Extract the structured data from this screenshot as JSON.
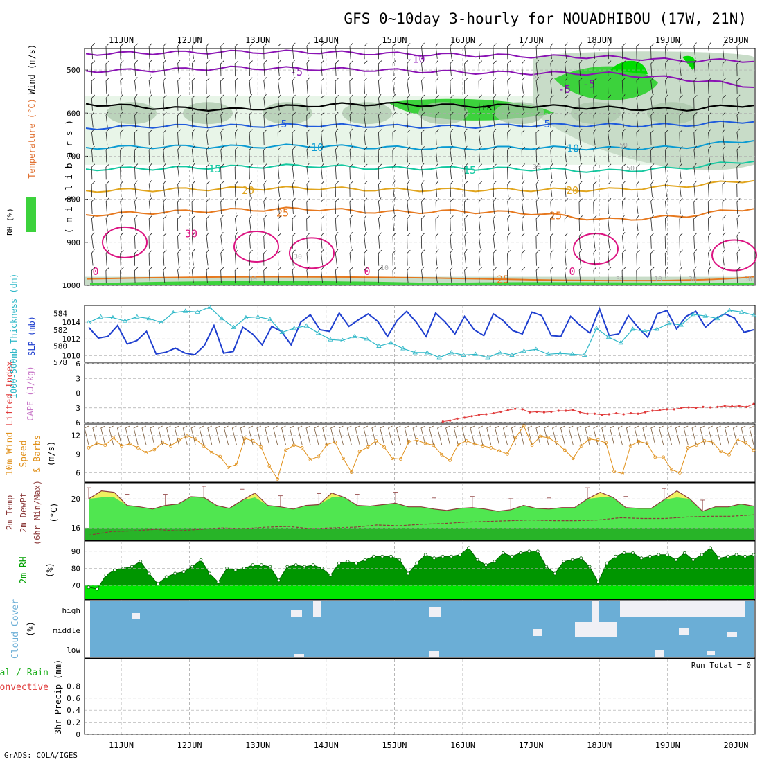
{
  "title": "GFS 0~10day 3-hourly for NOUADHIBOU (17W, 21N)",
  "credit": "GrADS: COLA/IGES",
  "dates": [
    "11JUN",
    "12JUN",
    "13JUN",
    "14JUN",
    "15JUN",
    "16JUN",
    "17JUN",
    "18JUN",
    "19JUN",
    "20JUN"
  ],
  "colors": {
    "sounding_rh": [
      "#e8f5e8",
      "#c8dcc8",
      "#a8c4a8",
      "#3cd23c",
      "#00dc00"
    ],
    "temp_isotherms": {
      "-10": "#8a12b4",
      "-5": "#8a12b4",
      "FR": "#000000",
      "5": "#1e5adc",
      "10": "#0a9bd2",
      "15": "#14c8a0",
      "20": "#e1a51e",
      "25": "#e6781e",
      "30": "#dc1482"
    },
    "slp": "#1f3fcf",
    "thickness": "#2fb8c8",
    "lifted_index": "#e03a3a",
    "wind10m": "#e0901a",
    "temp2m_fill": "#50e650",
    "temp2m_max": "#f0f060",
    "dewpt_fill": "#28b428",
    "rh2m_fill": "#009600",
    "rh2m_low": "#00e600",
    "cloud_fill": "#6baed6",
    "cloud_clear": "#f0f0f5"
  },
  "chart_data": [
    {
      "type": "area",
      "title": "",
      "ylabel_left": [
        "RH (%)",
        "Temperature (°C)",
        "Wind (m/s)"
      ],
      "ylabel_right": "( m i l l i b a r s )",
      "yticks": [
        "500",
        "600",
        "700",
        "800",
        "900",
        "1000"
      ],
      "ylim": [
        1000,
        450
      ],
      "x": [
        "11JUN",
        "12JUN",
        "13JUN",
        "14JUN",
        "15JUN",
        "16JUN",
        "17JUN",
        "18JUN",
        "19JUN",
        "20JUN"
      ],
      "isotherm_labels": [
        "-10",
        "-5",
        "-5",
        "FR",
        "-5",
        "5",
        "5",
        "10",
        "10",
        "15",
        "15",
        "20",
        "20",
        "25",
        "25",
        "30",
        "0",
        "0",
        "0",
        "25"
      ],
      "rh_labels": [
        "50",
        "30",
        "10",
        "50",
        "50",
        "30",
        "50",
        "30",
        "50",
        "10",
        "30"
      ],
      "isotherms": [
        {
          "name": "-10",
          "values": [
            462,
            460,
            458,
            458,
            462,
            465,
            468,
            470,
            478,
            478
          ]
        },
        {
          "name": "-5",
          "values": [
            502,
            500,
            495,
            497,
            500,
            505,
            507,
            508,
            520,
            538
          ]
        },
        {
          "name": "FR",
          "values": [
            578,
            588,
            592,
            582,
            578,
            583,
            583,
            588,
            592,
            580
          ]
        },
        {
          "name": "5",
          "values": [
            635,
            630,
            630,
            628,
            630,
            632,
            628,
            628,
            628,
            618
          ]
        },
        {
          "name": "10",
          "values": [
            680,
            678,
            678,
            676,
            680,
            682,
            680,
            682,
            680,
            662
          ]
        },
        {
          "name": "15",
          "values": [
            730,
            728,
            725,
            722,
            728,
            728,
            730,
            735,
            728,
            710
          ]
        },
        {
          "name": "20",
          "values": [
            780,
            778,
            775,
            774,
            778,
            778,
            778,
            778,
            770,
            755
          ]
        },
        {
          "name": "25",
          "values": [
            836,
            830,
            825,
            822,
            830,
            828,
            832,
            848,
            840,
            820
          ]
        }
      ]
    },
    {
      "type": "line",
      "ylabel_left": "1000-500mb Thickness (dm)",
      "ylabel_right": "SLP (mb)",
      "yticks_left": [
        "578",
        "580",
        "582",
        "584"
      ],
      "yticks_right": [
        "1010",
        "1012",
        "1014"
      ],
      "ylim_left": [
        578,
        585
      ],
      "ylim_right": [
        1009.2,
        1016
      ],
      "series": [
        {
          "name": "SLP",
          "axis": "right",
          "values": [
            1013.4,
            1012.1,
            1012.3,
            1013.6,
            1011.4,
            1011.8,
            1012.9,
            1010.2,
            1010.4,
            1010.9,
            1010.3,
            1010.1,
            1011.2,
            1013.6,
            1010.3,
            1010.5,
            1013.4,
            1012.6,
            1011.3,
            1013.5,
            1012.9,
            1011.3,
            1014.0,
            1014.9,
            1013.1,
            1012.9,
            1015.1,
            1013.5,
            1014.3,
            1015.0,
            1014.1,
            1012.3,
            1014.2,
            1015.3,
            1014.0,
            1012.3,
            1015.1,
            1014.0,
            1012.6,
            1014.7,
            1013.1,
            1012.4,
            1015.0,
            1014.2,
            1013.0,
            1012.6,
            1015.2,
            1014.8,
            1012.4,
            1012.3,
            1014.7,
            1013.6,
            1012.7,
            1015.6,
            1012.4,
            1012.6,
            1014.8,
            1013.4,
            1012.2,
            1015.0,
            1015.4,
            1013.2,
            1014.7,
            1015.3,
            1013.4,
            1014.4,
            1015.0,
            1014.5,
            1012.8,
            1013.1
          ]
        },
        {
          "name": "Thickness",
          "axis": "left",
          "values": [
            582.9,
            583.6,
            583.5,
            583.1,
            583.6,
            583.4,
            582.9,
            584.1,
            584.3,
            584.2,
            584.8,
            583.4,
            582.3,
            583.5,
            583.6,
            583.3,
            581.7,
            582.2,
            582.5,
            581.6,
            580.8,
            580.7,
            581.2,
            580.9,
            580.0,
            580.4,
            579.7,
            579.2,
            579.2,
            578.6,
            579.2,
            578.9,
            579.0,
            578.6,
            579.2,
            578.9,
            579.4,
            579.6,
            579.0,
            579.1,
            579.0,
            578.9,
            582.2,
            581.1,
            580.4,
            582.1,
            581.8,
            582.1,
            582.8,
            582.6,
            583.9,
            583.7,
            583.4,
            584.4,
            584.2,
            583.8
          ]
        }
      ]
    },
    {
      "type": "line",
      "ylabel_left": "Lifted Index",
      "ylabel_right": "CAPE (J/kg)",
      "yticks": [
        "-6",
        "-3",
        "0",
        "3",
        "6"
      ],
      "ylim": [
        6,
        -6
      ],
      "series": [
        {
          "name": "Lifted Index",
          "values": [
            7,
            7,
            7,
            7,
            7,
            7,
            7,
            7,
            7,
            7,
            7,
            7,
            7,
            7,
            7,
            7,
            7,
            7,
            7,
            7,
            7,
            7,
            7,
            7,
            7,
            7,
            7,
            7,
            7,
            7,
            7,
            7,
            7,
            7,
            7,
            7,
            7,
            7,
            7,
            7,
            7,
            7,
            7,
            7,
            7,
            6.2,
            6.5,
            6.3,
            6.2,
            5.8,
            5.6,
            5.2,
            5,
            4.7,
            4.4,
            4.3,
            4.1,
            3.8,
            3.5,
            3.2,
            3.3,
            3.9,
            3.8,
            3.9,
            3.8,
            3.6,
            3.6,
            3.4,
            3.9,
            4.2,
            4.2,
            4.4,
            4.3,
            4.1,
            4.3,
            4.1,
            4.2,
            3.9,
            3.6,
            3.5,
            3.3,
            3.3,
            3.0,
            2.9,
            3.0,
            2.8,
            2.9,
            2.8,
            2.6,
            2.7,
            2.6,
            2.8,
            2.2
          ]
        }
      ]
    },
    {
      "type": "line",
      "ylabel_left": "10m Wind Speed & Barbs (m/s)",
      "yticks": [
        "6",
        "9",
        "12"
      ],
      "ylim": [
        4.5,
        13.8
      ],
      "series": [
        {
          "name": "10m Wind Speed",
          "values": [
            10.0,
            10.7,
            10.4,
            11.6,
            10.3,
            10.6,
            10.0,
            9.2,
            9.7,
            10.8,
            10.3,
            11.2,
            11.9,
            11.4,
            10.3,
            9.2,
            8.6,
            6.9,
            7.3,
            11.5,
            11.1,
            10.1,
            7.1,
            5.0,
            9.6,
            10.4,
            10.0,
            8.1,
            8.6,
            10.5,
            10.9,
            8.3,
            6.1,
            9.4,
            10.1,
            11.1,
            10.1,
            8.3,
            8.2,
            11.0,
            11.2,
            10.7,
            10.4,
            8.9,
            8.0,
            10.5,
            11.1,
            10.6,
            10.3,
            10.0,
            9.5,
            9.0,
            11.6,
            13.5,
            10.4,
            11.8,
            11.6,
            10.8,
            9.6,
            8.3,
            10.3,
            11.4,
            11.2,
            10.8,
            6.2,
            5.9,
            10.3,
            11.0,
            10.7,
            8.5,
            8.5,
            6.5,
            6.0,
            10.0,
            10.4,
            11.1,
            10.9,
            9.4,
            8.9,
            11.3,
            10.8,
            9.6
          ]
        }
      ]
    },
    {
      "type": "area",
      "ylabel_left": "2m Temp 2m DewPt (6hr Min/Max) (°C)",
      "yticks": [
        "16",
        "20"
      ],
      "ylim": [
        14.3,
        22.2
      ],
      "series": [
        {
          "name": "2m Temp",
          "values": [
            20.0,
            21.1,
            20.9,
            19.1,
            18.9,
            18.6,
            19.1,
            19.3,
            20.3,
            20.2,
            19.1,
            18.7,
            19.8,
            20.8,
            19.1,
            18.9,
            18.6,
            19.1,
            19.2,
            20.8,
            20.2,
            19.1,
            19.0,
            19.2,
            19.4,
            18.9,
            18.9,
            18.6,
            18.4,
            18.7,
            18.8,
            18.6,
            18.3,
            18.5,
            19.1,
            18.7,
            18.6,
            18.8,
            18.8,
            20.0,
            20.9,
            20.2,
            18.8,
            18.7,
            18.7,
            19.9,
            21.1,
            20.0,
            18.3,
            18.9,
            18.9,
            19.3,
            19.0
          ]
        },
        {
          "name": "2m DewPt",
          "values": [
            15.0,
            15.5,
            15.6,
            15.8,
            15.6,
            15.8,
            16.0,
            15.9,
            16.1,
            16.2,
            15.9,
            16.0,
            16.1,
            16.4,
            16.3,
            16.5,
            16.6,
            16.8,
            16.9,
            17.0,
            17.1,
            17.0,
            17.0,
            17.1,
            17.4,
            17.3,
            17.3,
            17.5,
            17.6,
            17.6,
            17.8
          ]
        }
      ]
    },
    {
      "type": "area",
      "ylabel_left": "2m RH (%)",
      "yticks": [
        "70",
        "80",
        "90"
      ],
      "ylim": [
        62,
        96
      ],
      "series": [
        {
          "name": "2m RH",
          "values": [
            69,
            68,
            76,
            79,
            80,
            81,
            84,
            77,
            71,
            75,
            77,
            78,
            81,
            85,
            77,
            72,
            80,
            79,
            80,
            82,
            82,
            81,
            73,
            81,
            82,
            81,
            82,
            80,
            76,
            83,
            84,
            83,
            85,
            87,
            87,
            87,
            85,
            77,
            83,
            88,
            86,
            87,
            87,
            88,
            92,
            85,
            82,
            84,
            89,
            87,
            89,
            90,
            90,
            81,
            77,
            84,
            85,
            86,
            81,
            72,
            83,
            87,
            89,
            89,
            86,
            87,
            88,
            88,
            85,
            89,
            85,
            88,
            92,
            86,
            87,
            88,
            87,
            88
          ]
        }
      ]
    },
    {
      "type": "heatmap",
      "ylabel_left": "Cloud Cover (%)",
      "yticks": [
        "high",
        "middle",
        "low"
      ],
      "note": "mostly clear with patches of high cloud near 17JUN-20JUN"
    },
    {
      "type": "bar",
      "ylabel_left": "3hr Precip (mm)",
      "series_labels": [
        "Total / Rain",
        "Convective"
      ],
      "yticks": [
        "0",
        "0.2",
        "0.4",
        "0.6",
        "0.8"
      ],
      "ylim": [
        0,
        1
      ],
      "annotation": "Run Total = 0",
      "values": []
    }
  ]
}
